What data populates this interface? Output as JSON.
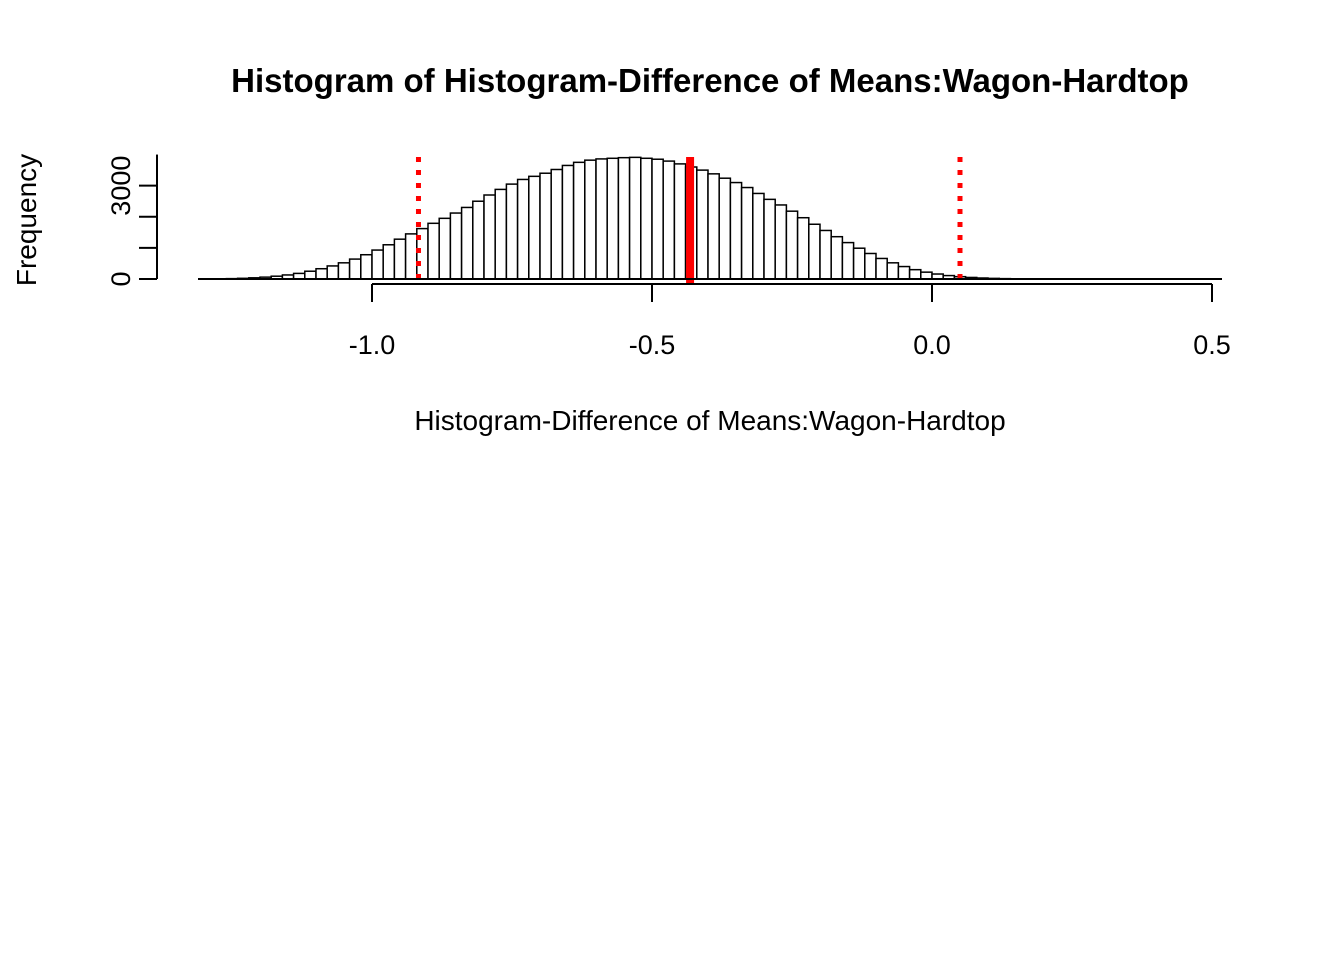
{
  "chart_data": {
    "type": "bar",
    "subtype": "histogram",
    "title": "Histogram of  Histogram-Difference of Means:Wagon-Hardtop",
    "xlabel": "Histogram-Difference of Means:Wagon-Hardtop",
    "ylabel": "Frequency",
    "xlim": [
      -1.3,
      0.52
    ],
    "ylim": [
      0,
      4000
    ],
    "x_ticks": [
      -1.0,
      -0.5,
      0.0,
      0.5
    ],
    "x_tick_labels": [
      "-1.0",
      "-0.5",
      "0.0",
      "0.5"
    ],
    "y_ticks": [
      0,
      1000,
      2000,
      3000,
      4000
    ],
    "y_tick_labels": [
      "0",
      "3000"
    ],
    "bin_width": 0.02,
    "bin_start": -1.28,
    "frequencies": [
      5,
      12,
      22,
      38,
      60,
      90,
      130,
      180,
      250,
      330,
      420,
      520,
      640,
      780,
      930,
      1100,
      1280,
      1450,
      1620,
      1790,
      1950,
      2120,
      2300,
      2500,
      2700,
      2880,
      3050,
      3200,
      3300,
      3400,
      3520,
      3650,
      3750,
      3820,
      3860,
      3880,
      3900,
      3910,
      3880,
      3850,
      3790,
      3700,
      3600,
      3500,
      3380,
      3240,
      3100,
      2940,
      2750,
      2560,
      2380,
      2180,
      1970,
      1760,
      1560,
      1360,
      1170,
      990,
      820,
      660,
      520,
      400,
      300,
      220,
      160,
      110,
      75,
      50,
      32,
      20,
      12,
      7,
      4,
      2,
      1,
      1,
      0,
      0
    ],
    "bar_fill": "#ffffff",
    "bar_stroke": "#000000",
    "vlines": [
      {
        "x": -0.432,
        "style": "solid",
        "color": "#ff0000"
      },
      {
        "x": -0.917,
        "style": "dotted",
        "color": "#ff0000"
      },
      {
        "x": 0.05,
        "style": "dotted",
        "color": "#ff0000"
      }
    ],
    "grid": false,
    "legend": "none"
  }
}
